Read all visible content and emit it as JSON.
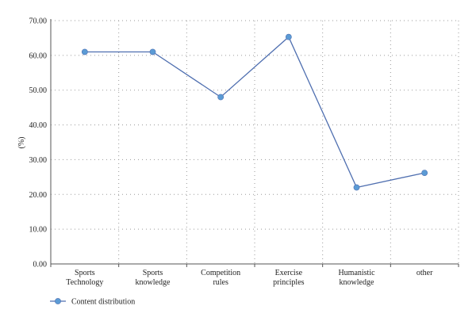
{
  "chart_data": {
    "type": "line",
    "title": "",
    "xlabel": "",
    "ylabel": "(%)",
    "categories": [
      [
        "Sports",
        "Technology"
      ],
      [
        "Sports",
        "knowledge"
      ],
      [
        "Competition",
        "rules"
      ],
      [
        "Exercise",
        "principles"
      ],
      [
        "Humanistic",
        "knowledge"
      ],
      [
        "other"
      ]
    ],
    "series": [
      {
        "name": "Content distribution",
        "values": [
          61.0,
          61.0,
          48.0,
          65.3,
          22.0,
          26.2
        ],
        "color": "#4f6fb0",
        "marker_color": "#5b9bd5"
      }
    ],
    "ylim": [
      0,
      70
    ],
    "yticks": [
      "0.00",
      "10.00",
      "20.00",
      "30.00",
      "40.00",
      "50.00",
      "60.00",
      "70.00"
    ],
    "grid": true,
    "legend_position": "bottom-left"
  }
}
